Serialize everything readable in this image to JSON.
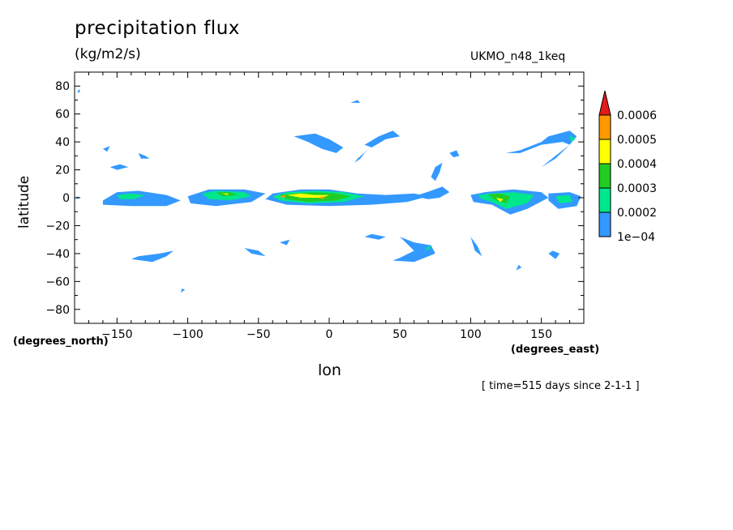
{
  "chart_data": {
    "type": "heatmap",
    "title": "precipitation flux",
    "units": "(kg/m2/s)",
    "model": "UKMO_n48_1keq",
    "xlabel": "lon",
    "ylabel": "latitude",
    "x_units": "(degrees_east)",
    "y_units": "(degrees_north)",
    "time_note": "[ time=515 days since 2-1-1 ]",
    "xlim": [
      -180,
      180
    ],
    "ylim": [
      -90,
      90
    ],
    "x_ticks": [
      -150,
      -100,
      -50,
      0,
      50,
      100,
      150
    ],
    "y_ticks": [
      80,
      60,
      40,
      20,
      0,
      -20,
      -40,
      -60,
      -80
    ],
    "grid": false,
    "colorbar": {
      "levels": [
        "1e-04",
        "0.0002",
        "0.0003",
        "0.0004",
        "0.0005",
        "0.0006"
      ],
      "colors": [
        "#3399ff",
        "#00e68c",
        "#22cc22",
        "#ffff00",
        "#ff9900",
        "#e51a1a"
      ]
    },
    "regions": [
      {
        "level": 0,
        "pts": [
          [
            -178,
            1
          ],
          [
            -176,
            0
          ],
          [
            -179,
            -1
          ]
        ]
      },
      {
        "level": 0,
        "pts": [
          [
            -177,
            78
          ],
          [
            -176,
            76
          ],
          [
            -178,
            75
          ]
        ]
      },
      {
        "level": 0,
        "pts": [
          [
            -160,
            -2
          ],
          [
            -150,
            4
          ],
          [
            -135,
            5
          ],
          [
            -115,
            2
          ],
          [
            -105,
            -2
          ],
          [
            -115,
            -6
          ],
          [
            -140,
            -6
          ],
          [
            -160,
            -5
          ]
        ]
      },
      {
        "level": 1,
        "pts": [
          [
            -150,
            2
          ],
          [
            -140,
            3
          ],
          [
            -130,
            2
          ],
          [
            -138,
            -1
          ],
          [
            -148,
            -1
          ]
        ]
      },
      {
        "level": 0,
        "pts": [
          [
            -100,
            1
          ],
          [
            -85,
            6
          ],
          [
            -60,
            6
          ],
          [
            -45,
            3
          ],
          [
            -55,
            -3
          ],
          [
            -80,
            -6
          ],
          [
            -98,
            -4
          ]
        ]
      },
      {
        "level": 1,
        "pts": [
          [
            -90,
            3
          ],
          [
            -80,
            5
          ],
          [
            -60,
            4
          ],
          [
            -55,
            1
          ],
          [
            -70,
            -2
          ],
          [
            -85,
            -1
          ]
        ]
      },
      {
        "level": 2,
        "pts": [
          [
            -80,
            4
          ],
          [
            -70,
            4
          ],
          [
            -65,
            2
          ],
          [
            -75,
            1
          ]
        ]
      },
      {
        "level": 3,
        "pts": [
          [
            -76,
            3
          ],
          [
            -71,
            3
          ],
          [
            -72,
            2
          ]
        ]
      },
      {
        "level": 0,
        "pts": [
          [
            -45,
            -1
          ],
          [
            -40,
            3
          ],
          [
            -20,
            6
          ],
          [
            0,
            6
          ],
          [
            20,
            3
          ],
          [
            40,
            2
          ],
          [
            60,
            3
          ],
          [
            70,
            1
          ],
          [
            55,
            -3
          ],
          [
            30,
            -5
          ],
          [
            0,
            -6
          ],
          [
            -30,
            -5
          ]
        ]
      },
      {
        "level": 1,
        "pts": [
          [
            -40,
            1
          ],
          [
            -30,
            4
          ],
          [
            -10,
            5
          ],
          [
            10,
            4
          ],
          [
            25,
            1
          ],
          [
            10,
            -3
          ],
          [
            -15,
            -4
          ],
          [
            -35,
            -2
          ]
        ]
      },
      {
        "level": 2,
        "pts": [
          [
            -35,
            2
          ],
          [
            -25,
            3
          ],
          [
            -10,
            4
          ],
          [
            5,
            3
          ],
          [
            15,
            1
          ],
          [
            5,
            -2
          ],
          [
            -15,
            -3
          ],
          [
            -30,
            -1
          ]
        ]
      },
      {
        "level": 3,
        "pts": [
          [
            -30,
            2
          ],
          [
            -20,
            3
          ],
          [
            -10,
            2
          ],
          [
            0,
            2
          ],
          [
            -5,
            0
          ],
          [
            -20,
            0
          ]
        ]
      },
      {
        "level": 4,
        "pts": [
          [
            -35,
            1
          ],
          [
            -30,
            2
          ],
          [
            -32,
            0
          ]
        ]
      },
      {
        "level": 4,
        "pts": [
          [
            -8,
            0
          ],
          [
            -3,
            1
          ],
          [
            -4,
            -1
          ]
        ]
      },
      {
        "level": 0,
        "pts": [
          [
            60,
            1
          ],
          [
            72,
            5
          ],
          [
            80,
            8
          ],
          [
            85,
            4
          ],
          [
            78,
            0
          ],
          [
            70,
            -1
          ]
        ]
      },
      {
        "level": 0,
        "pts": [
          [
            100,
            2
          ],
          [
            110,
            4
          ],
          [
            130,
            6
          ],
          [
            150,
            4
          ],
          [
            155,
            0
          ],
          [
            140,
            -8
          ],
          [
            128,
            -12
          ],
          [
            115,
            -5
          ],
          [
            102,
            -3
          ]
        ]
      },
      {
        "level": 1,
        "pts": [
          [
            105,
            2
          ],
          [
            115,
            3
          ],
          [
            130,
            4
          ],
          [
            145,
            2
          ],
          [
            140,
            -4
          ],
          [
            125,
            -8
          ],
          [
            115,
            -3
          ],
          [
            108,
            -1
          ]
        ]
      },
      {
        "level": 2,
        "pts": [
          [
            112,
            2
          ],
          [
            120,
            3
          ],
          [
            128,
            1
          ],
          [
            125,
            -4
          ],
          [
            118,
            -2
          ]
        ]
      },
      {
        "level": 3,
        "pts": [
          [
            118,
            0
          ],
          [
            123,
            -1
          ],
          [
            121,
            -3
          ]
        ]
      },
      {
        "level": 0,
        "pts": [
          [
            155,
            3
          ],
          [
            170,
            4
          ],
          [
            178,
            1
          ],
          [
            175,
            -6
          ],
          [
            162,
            -8
          ],
          [
            155,
            -2
          ]
        ]
      },
      {
        "level": 1,
        "pts": [
          [
            160,
            1
          ],
          [
            170,
            2
          ],
          [
            172,
            -3
          ],
          [
            163,
            -4
          ]
        ]
      },
      {
        "level": 0,
        "pts": [
          [
            -135,
            32
          ],
          [
            -130,
            30
          ],
          [
            -127,
            28
          ],
          [
            -133,
            28
          ]
        ]
      },
      {
        "level": 0,
        "pts": [
          [
            -155,
            22
          ],
          [
            -148,
            24
          ],
          [
            -142,
            22
          ],
          [
            -150,
            20
          ]
        ]
      },
      {
        "level": 0,
        "pts": [
          [
            -160,
            35
          ],
          [
            -155,
            37
          ],
          [
            -157,
            33
          ]
        ]
      },
      {
        "level": 0,
        "pts": [
          [
            -25,
            44
          ],
          [
            -10,
            46
          ],
          [
            0,
            42
          ],
          [
            10,
            36
          ],
          [
            5,
            32
          ],
          [
            -5,
            35
          ],
          [
            -15,
            40
          ]
        ]
      },
      {
        "level": 0,
        "pts": [
          [
            25,
            38
          ],
          [
            35,
            44
          ],
          [
            45,
            48
          ],
          [
            50,
            44
          ],
          [
            40,
            42
          ],
          [
            30,
            36
          ]
        ]
      },
      {
        "level": 0,
        "pts": [
          [
            25,
            32
          ],
          [
            28,
            35
          ],
          [
            20,
            28
          ],
          [
            18,
            25
          ],
          [
            22,
            28
          ]
        ]
      },
      {
        "level": 0,
        "pts": [
          [
            75,
            22
          ],
          [
            80,
            25
          ],
          [
            78,
            18
          ],
          [
            75,
            12
          ],
          [
            72,
            15
          ]
        ]
      },
      {
        "level": 0,
        "pts": [
          [
            85,
            32
          ],
          [
            90,
            34
          ],
          [
            92,
            30
          ],
          [
            88,
            29
          ]
        ]
      },
      {
        "level": 0,
        "pts": [
          [
            125,
            32
          ],
          [
            135,
            34
          ],
          [
            150,
            40
          ],
          [
            155,
            44
          ],
          [
            170,
            48
          ],
          [
            175,
            44
          ],
          [
            170,
            38
          ],
          [
            160,
            30
          ],
          [
            150,
            22
          ],
          [
            160,
            28
          ],
          [
            170,
            38
          ],
          [
            165,
            40
          ],
          [
            150,
            38
          ],
          [
            135,
            32
          ]
        ]
      },
      {
        "level": 1,
        "pts": [
          [
            170,
            45
          ],
          [
            174,
            42
          ],
          [
            171,
            40
          ]
        ]
      },
      {
        "level": 0,
        "pts": [
          [
            15,
            68
          ],
          [
            20,
            70
          ],
          [
            22,
            68
          ]
        ]
      },
      {
        "level": 0,
        "pts": [
          [
            -60,
            -36
          ],
          [
            -50,
            -38
          ],
          [
            -45,
            -42
          ],
          [
            -55,
            -40
          ]
        ]
      },
      {
        "level": 0,
        "pts": [
          [
            -140,
            -44
          ],
          [
            -125,
            -46
          ],
          [
            -115,
            -42
          ],
          [
            -110,
            -38
          ],
          [
            -120,
            -40
          ],
          [
            -135,
            -42
          ]
        ]
      },
      {
        "level": 0,
        "pts": [
          [
            -35,
            -32
          ],
          [
            -30,
            -34
          ],
          [
            -28,
            -30
          ]
        ]
      },
      {
        "level": 0,
        "pts": [
          [
            25,
            -28
          ],
          [
            35,
            -30
          ],
          [
            40,
            -28
          ],
          [
            30,
            -26
          ]
        ]
      },
      {
        "level": 0,
        "pts": [
          [
            45,
            -45
          ],
          [
            60,
            -46
          ],
          [
            75,
            -40
          ],
          [
            72,
            -34
          ],
          [
            60,
            -32
          ],
          [
            50,
            -28
          ],
          [
            60,
            -38
          ],
          [
            50,
            -43
          ]
        ]
      },
      {
        "level": 1,
        "pts": [
          [
            68,
            -38
          ],
          [
            72,
            -36
          ],
          [
            70,
            -34
          ]
        ]
      },
      {
        "level": 0,
        "pts": [
          [
            100,
            -28
          ],
          [
            105,
            -35
          ],
          [
            108,
            -42
          ],
          [
            103,
            -38
          ]
        ]
      },
      {
        "level": 0,
        "pts": [
          [
            155,
            -40
          ],
          [
            160,
            -44
          ],
          [
            163,
            -40
          ],
          [
            158,
            -38
          ]
        ]
      },
      {
        "level": 0,
        "pts": [
          [
            132,
            -52
          ],
          [
            136,
            -50
          ],
          [
            134,
            -48
          ]
        ]
      },
      {
        "level": 0,
        "pts": [
          [
            -105,
            -68
          ],
          [
            -102,
            -66
          ],
          [
            -104,
            -65
          ]
        ]
      }
    ]
  }
}
